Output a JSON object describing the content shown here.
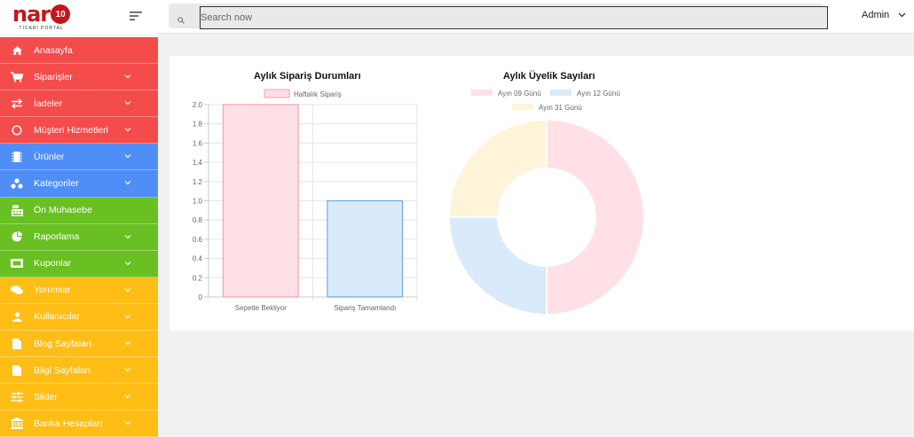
{
  "brand": {
    "logo_text": "nar",
    "logo_num": "10",
    "logo_sub": "TİCARİ PORTAL"
  },
  "search": {
    "placeholder": "Search now"
  },
  "user": {
    "name": "Admin"
  },
  "colors": {
    "red": "#f44b4b",
    "blue": "#4f8ef7",
    "green": "#69c022",
    "yellow": "#ffbd16"
  },
  "sidebar": {
    "items": [
      {
        "label": "Anasayfa",
        "icon": "home-icon",
        "color": "red",
        "chevron": false
      },
      {
        "label": "Siparişler",
        "icon": "cart-icon",
        "color": "red",
        "chevron": true
      },
      {
        "label": "İadeler",
        "icon": "swap-icon",
        "color": "red",
        "chevron": true
      },
      {
        "label": "Müşteri Hizmetleri",
        "icon": "circle-icon",
        "color": "red",
        "chevron": true
      },
      {
        "label": "Ürünler",
        "icon": "chip-icon",
        "color": "blue",
        "chevron": true
      },
      {
        "label": "Kategoriler",
        "icon": "sitemap-icon",
        "color": "blue",
        "chevron": true
      },
      {
        "label": "Ön Muhasebe",
        "icon": "cashregister-icon",
        "color": "green",
        "chevron": false
      },
      {
        "label": "Raporlama",
        "icon": "piechart-icon",
        "color": "green",
        "chevron": true
      },
      {
        "label": "Kuponlar",
        "icon": "ticket-icon",
        "color": "green",
        "chevron": true
      },
      {
        "label": "Yorumlar",
        "icon": "comments-icon",
        "color": "yellow",
        "chevron": true
      },
      {
        "label": "Kullanıcılar",
        "icon": "user-icon",
        "color": "yellow",
        "chevron": true
      },
      {
        "label": "Blog Sayfaları",
        "icon": "file-icon",
        "color": "yellow",
        "chevron": true
      },
      {
        "label": "Bilgi Sayfaları",
        "icon": "file-icon",
        "color": "yellow",
        "chevron": true
      },
      {
        "label": "Slider",
        "icon": "sliders-icon",
        "color": "yellow",
        "chevron": true
      },
      {
        "label": "Banka Hesapları",
        "icon": "bank-icon",
        "color": "yellow",
        "chevron": true
      }
    ]
  },
  "chart_data": [
    {
      "type": "bar",
      "title": "Aylık Sipariş Durumları",
      "categories": [
        "Sepette Bekliyor",
        "Sipariş Tamamlandı"
      ],
      "series": [
        {
          "name": "Haftalık Sipariş",
          "values": [
            2,
            1
          ]
        }
      ],
      "ylim": [
        0,
        2.0
      ],
      "yticks": [
        "2.0",
        "1.8",
        "1.6",
        "1.4",
        "1.2",
        "1.0",
        "0.8",
        "0.6",
        "0.4",
        "0.2",
        "0"
      ],
      "grid": true,
      "legend": "top",
      "fill": "#ffe0e6",
      "stroke": "#f2a1b1",
      "fill2": "#d9eafa",
      "stroke2": "#6ea8dc"
    },
    {
      "type": "pie",
      "title": "Aylık Üyelik Sayıları",
      "labels": [
        "Ayın 09 Günü",
        "Ayın 12 Günü",
        "Ayın 31 Günü"
      ],
      "values": [
        2,
        1,
        1
      ],
      "colors": [
        "#ffe0e6",
        "#d9eafa",
        "#fff4d9"
      ],
      "legend": "top"
    }
  ]
}
